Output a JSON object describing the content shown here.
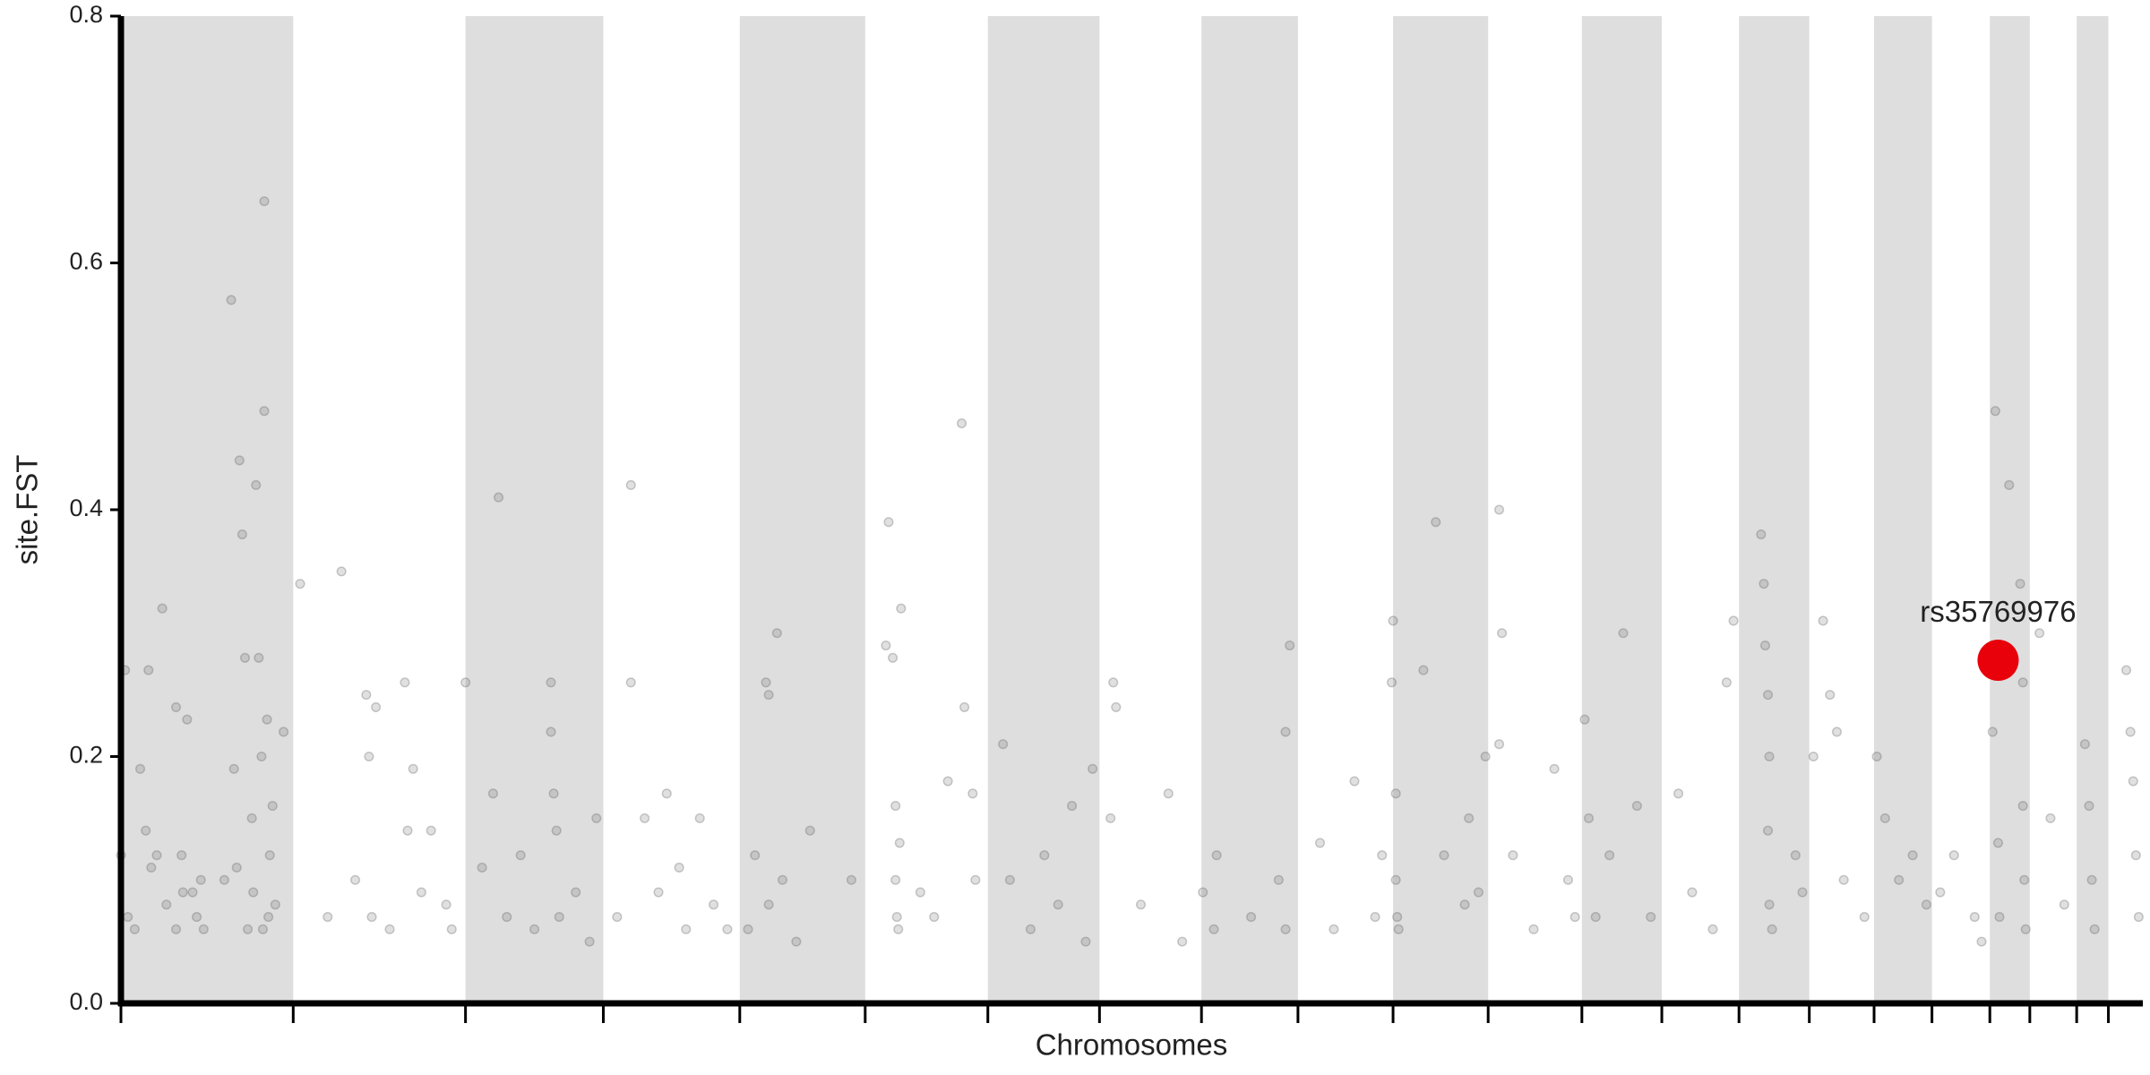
{
  "chart_data": {
    "type": "scatter",
    "x_label": "Chromosomes",
    "y_label": "site.FST",
    "color": "#555555",
    "xlim": [
      0,
      1467
    ],
    "ylim": [
      0,
      0.8
    ],
    "yticks": [
      {
        "value": 0,
        "label": "0.0"
      },
      0.2,
      0.4,
      0.6,
      0.8
    ],
    "xticks": [
      0,
      125,
      250,
      350,
      449,
      540,
      629,
      710,
      784,
      854,
      923,
      992,
      1060,
      1118,
      1174,
      1225,
      1272,
      1314,
      1356,
      1385,
      1419,
      1442
    ],
    "alternate_shading": true,
    "shade_color": "#dedede",
    "x": [
      0,
      3,
      5,
      10,
      14,
      18,
      20,
      22,
      26,
      30,
      33,
      40,
      44,
      48,
      52,
      55,
      58,
      80,
      82,
      84,
      86,
      88,
      90,
      92,
      95,
      98,
      100,
      102,
      104,
      104,
      106,
      107,
      108,
      110,
      112,
      118,
      40,
      45,
      60,
      75,
      96,
      103,
      130,
      160,
      178,
      180,
      182,
      185,
      206,
      208,
      212,
      218,
      225,
      236,
      150,
      170,
      240,
      195,
      250,
      262,
      270,
      274,
      280,
      300,
      312,
      312,
      314,
      316,
      318,
      340,
      345,
      330,
      290,
      370,
      370,
      380,
      396,
      405,
      410,
      430,
      440,
      360,
      390,
      420,
      468,
      470,
      476,
      480,
      460,
      470,
      490,
      500,
      530,
      455,
      555,
      557,
      560,
      562,
      562,
      563,
      564,
      566,
      565,
      580,
      600,
      610,
      612,
      618,
      620,
      590,
      640,
      645,
      660,
      670,
      690,
      700,
      680,
      705,
      720,
      722,
      718,
      740,
      760,
      770,
      785,
      795,
      793,
      820,
      848,
      845,
      840,
      845,
      870,
      880,
      895,
      910,
      915,
      923,
      922,
      925,
      925,
      926,
      927,
      945,
      954,
      960,
      975,
      978,
      985,
      990,
      1000,
      1002,
      1000,
      1010,
      1025,
      1040,
      1050,
      1055,
      1062,
      1065,
      1070,
      1080,
      1090,
      1100,
      1110,
      1130,
      1140,
      1155,
      1170,
      1165,
      1190,
      1192,
      1193,
      1195,
      1196,
      1195,
      1196,
      1198,
      1215,
      1220,
      1228,
      1235,
      1240,
      1245,
      1250,
      1265,
      1274,
      1280,
      1290,
      1300,
      1310,
      1320,
      1330,
      1345,
      1350,
      1358,
      1358,
      1360,
      1362,
      1363,
      1370,
      1378,
      1380,
      1380,
      1381,
      1382,
      1392,
      1400,
      1410,
      1425,
      1428,
      1430,
      1432,
      1455,
      1458,
      1460,
      1462,
      1464
    ],
    "values": [
      0.12,
      0.27,
      0.07,
      0.06,
      0.19,
      0.14,
      0.27,
      0.11,
      0.12,
      0.32,
      0.08,
      0.24,
      0.12,
      0.23,
      0.09,
      0.07,
      0.1,
      0.57,
      0.19,
      0.11,
      0.44,
      0.38,
      0.28,
      0.06,
      0.15,
      0.42,
      0.28,
      0.2,
      0.65,
      0.48,
      0.23,
      0.07,
      0.12,
      0.16,
      0.08,
      0.22,
      0.06,
      0.09,
      0.06,
      0.1,
      0.09,
      0.06,
      0.34,
      0.35,
      0.25,
      0.2,
      0.07,
      0.24,
      0.26,
      0.14,
      0.19,
      0.09,
      0.14,
      0.08,
      0.07,
      0.1,
      0.06,
      0.06,
      0.26,
      0.11,
      0.17,
      0.41,
      0.07,
      0.06,
      0.26,
      0.22,
      0.17,
      0.14,
      0.07,
      0.05,
      0.15,
      0.09,
      0.12,
      0.42,
      0.26,
      0.15,
      0.17,
      0.11,
      0.06,
      0.08,
      0.06,
      0.07,
      0.09,
      0.15,
      0.26,
      0.25,
      0.3,
      0.1,
      0.12,
      0.08,
      0.05,
      0.14,
      0.1,
      0.06,
      0.29,
      0.39,
      0.28,
      0.16,
      0.1,
      0.07,
      0.06,
      0.32,
      0.13,
      0.09,
      0.18,
      0.47,
      0.24,
      0.17,
      0.1,
      0.07,
      0.21,
      0.1,
      0.06,
      0.12,
      0.16,
      0.05,
      0.08,
      0.19,
      0.26,
      0.24,
      0.15,
      0.08,
      0.17,
      0.05,
      0.09,
      0.12,
      0.06,
      0.07,
      0.29,
      0.22,
      0.1,
      0.06,
      0.13,
      0.06,
      0.18,
      0.07,
      0.12,
      0.31,
      0.26,
      0.17,
      0.1,
      0.07,
      0.06,
      0.27,
      0.39,
      0.12,
      0.08,
      0.15,
      0.09,
      0.2,
      0.4,
      0.3,
      0.21,
      0.12,
      0.06,
      0.19,
      0.1,
      0.07,
      0.23,
      0.15,
      0.07,
      0.12,
      0.3,
      0.16,
      0.07,
      0.17,
      0.09,
      0.06,
      0.31,
      0.26,
      0.38,
      0.34,
      0.29,
      0.25,
      0.2,
      0.14,
      0.08,
      0.06,
      0.12,
      0.09,
      0.2,
      0.31,
      0.25,
      0.22,
      0.1,
      0.07,
      0.2,
      0.15,
      0.1,
      0.12,
      0.08,
      0.09,
      0.12,
      0.07,
      0.05,
      0.29,
      0.22,
      0.48,
      0.13,
      0.07,
      0.42,
      0.34,
      0.26,
      0.16,
      0.1,
      0.06,
      0.3,
      0.15,
      0.08,
      0.21,
      0.16,
      0.1,
      0.06,
      0.27,
      0.22,
      0.18,
      0.12,
      0.07
    ],
    "highlight": {
      "label": "rs35769976",
      "x": 1362,
      "value": 0.278,
      "color": "#e8000b"
    }
  }
}
